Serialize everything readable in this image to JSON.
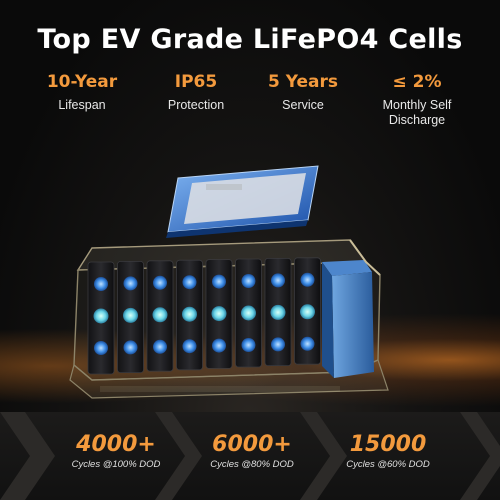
{
  "title": "Top EV Grade LiFePO4 Cells",
  "features": [
    {
      "value": "10-Year",
      "label": "Lifespan"
    },
    {
      "value": "IP65",
      "label": "Protection"
    },
    {
      "value": "5 Years",
      "label": "Service"
    },
    {
      "value": "≤ 2%",
      "label": "Monthly Self Discharge"
    }
  ],
  "stats": [
    {
      "number": "4000+",
      "caption": "Cycles @100% DOD"
    },
    {
      "number": "6000+",
      "caption": "Cycles @80% DOD"
    },
    {
      "number": "15000",
      "caption": "Cycles @60% DOD"
    }
  ],
  "colors": {
    "accent": "#f39a3d",
    "cell": "#1e1e20",
    "terminal": "#4a9ff0"
  }
}
